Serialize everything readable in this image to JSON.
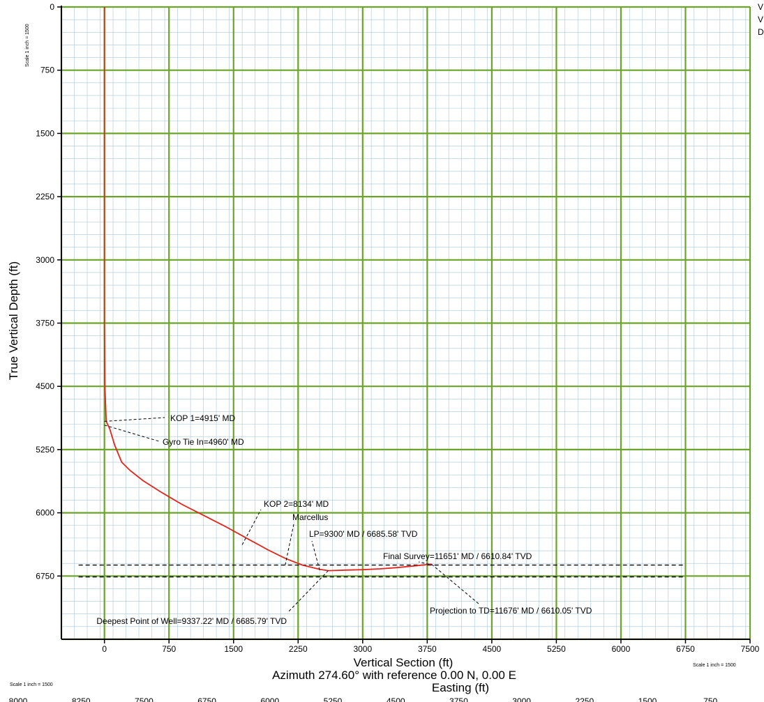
{
  "chart_data": {
    "type": "line",
    "xlabel": "Vertical Section (ft)",
    "ylabel": "True Vertical Depth (ft)",
    "subtitle": "Azimuth 274.60° with reference 0.00 N, 0.00 E",
    "easting_label": "Easting (ft)",
    "scale_label": "Scale 1 inch = 1500",
    "xlim": [
      -500,
      7500
    ],
    "ylim": [
      0,
      7500
    ],
    "y_inverted": true,
    "grid": true,
    "x_ticks": [
      0,
      750,
      1500,
      2250,
      3000,
      3750,
      4500,
      5250,
      6000,
      6750,
      7500
    ],
    "y_ticks": [
      0,
      750,
      1500,
      2250,
      3000,
      3750,
      4500,
      5250,
      6000,
      6750
    ],
    "easting_ticks": [
      "8000",
      "8250",
      "7500",
      "6750",
      "6000",
      "5250",
      "4500",
      "3750",
      "3000",
      "2250",
      "1500",
      "750"
    ],
    "side_text": [
      "V",
      "V",
      "D"
    ],
    "colors": {
      "grid_major": "#6aa428",
      "grid_minor": "#a6c6d6",
      "well_path": "#e0261c",
      "axis": "#000000"
    },
    "series": [
      {
        "x": [
          0,
          0,
          0,
          0,
          0,
          0,
          5,
          20,
          60,
          120,
          200,
          300,
          450,
          650,
          900,
          1150,
          1400,
          1650,
          1900,
          2100,
          2300,
          2500,
          2600,
          2800,
          3000,
          3200,
          3400,
          3600,
          3772,
          3800
        ],
        "y": [
          0,
          750,
          1500,
          2250,
          3000,
          3750,
          4500,
          4915,
          5000,
          5200,
          5400,
          5500,
          5620,
          5750,
          5900,
          6030,
          6160,
          6300,
          6440,
          6540,
          6620,
          6670,
          6686,
          6680,
          6675,
          6665,
          6650,
          6630,
          6611,
          6610
        ]
      }
    ],
    "formation_lines": [
      {
        "y": 6620,
        "x_range": [
          -300,
          6750
        ]
      },
      {
        "y": 6760,
        "x_range": [
          -300,
          6750
        ]
      }
    ],
    "annotations": [
      {
        "text": "KOP 1=4915' MD",
        "point": [
          0,
          4915
        ]
      },
      {
        "text": "Gyro Tie In=4960' MD",
        "point": [
          0,
          4960
        ]
      },
      {
        "text": "KOP 2=8134' MD",
        "point": [
          1600,
          6380
        ]
      },
      {
        "text": "Marcellus",
        "point": [
          2100,
          6620
        ]
      },
      {
        "text": "LP=9300' MD / 6685.58' TVD",
        "point": [
          2500,
          6680
        ]
      },
      {
        "text": "Final Survey=11651' MD / 6610.84' TVD",
        "point": [
          3772,
          6611
        ]
      },
      {
        "text": "Projection to TD=11676' MD / 6610.05' TVD",
        "point": [
          3800,
          6610
        ]
      },
      {
        "text": "Deepest Point of Well=9337.22' MD / 6685.79' TVD",
        "point": [
          2600,
          6686
        ]
      }
    ]
  }
}
